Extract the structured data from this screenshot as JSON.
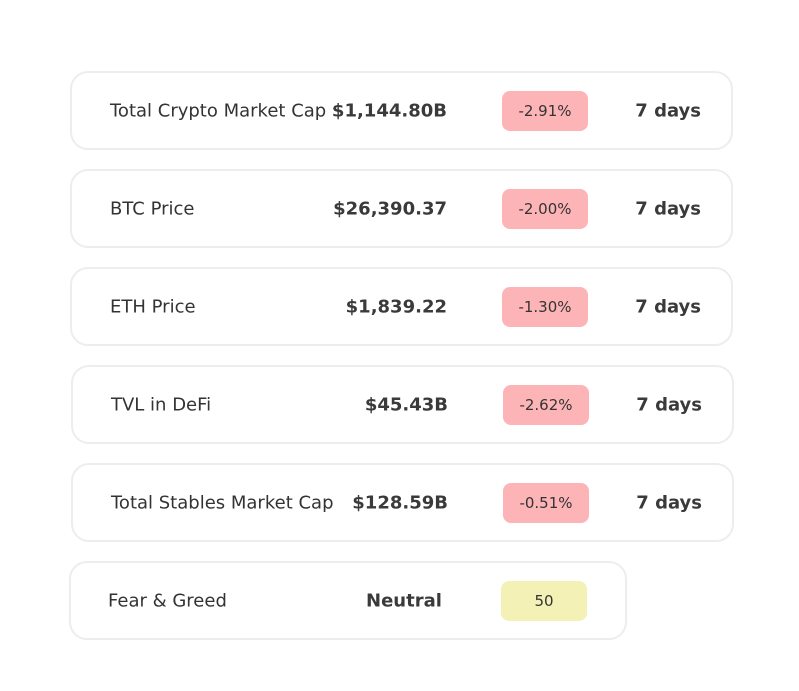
{
  "metrics": [
    {
      "label": "Total Crypto Market Cap",
      "value": "$1,144.80B",
      "change": "-2.91%",
      "period": "7 days"
    },
    {
      "label": "BTC Price",
      "value": "$26,390.37",
      "change": "-2.00%",
      "period": "7 days"
    },
    {
      "label": "ETH Price",
      "value": "$1,839.22",
      "change": "-1.30%",
      "period": "7 days"
    },
    {
      "label": "TVL in DeFi",
      "value": "$45.43B",
      "change": "-2.62%",
      "period": "7 days"
    },
    {
      "label": "Total Stables Market Cap",
      "value": "$128.59B",
      "change": "-0.51%",
      "period": "7 days"
    }
  ],
  "fear_greed": {
    "label": "Fear & Greed",
    "status": "Neutral",
    "score": "50"
  },
  "colors": {
    "negative_badge": "#fdb4b6",
    "neutral_badge": "#f3f1b6",
    "card_border": "#ededed"
  }
}
